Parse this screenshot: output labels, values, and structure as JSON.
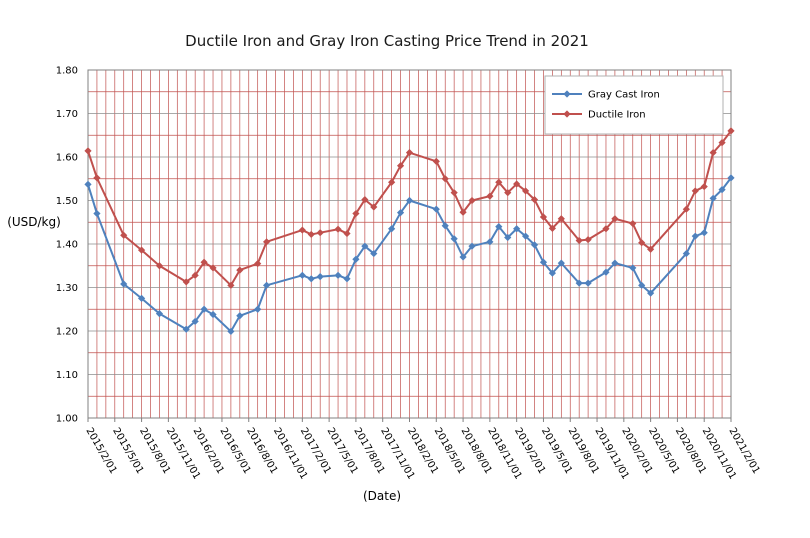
{
  "chart_data": {
    "type": "line",
    "title": "Ductile Iron and Gray Iron Casting Price Trend in 2021",
    "xlabel": "(Date)",
    "ylabel": "(USD/kg)",
    "ylim": [
      1.0,
      1.8
    ],
    "yticks": [
      "1.00",
      "1.10",
      "1.20",
      "1.30",
      "1.40",
      "1.50",
      "1.60",
      "1.70",
      "1.80"
    ],
    "xticks": [
      "2015/2/01",
      "2015/5/01",
      "2015/8/01",
      "2015/11/01",
      "2016/2/01",
      "2016/5/01",
      "2016/8/01",
      "2016/11/01",
      "2017/2/01",
      "2017/5/01",
      "2017/8/01",
      "2017/11/01",
      "2018/2/01",
      "2018/5/01",
      "2018/8/01",
      "2018/11/01",
      "2019/2/01",
      "2019/5/01",
      "2019/8/01",
      "2019/11/01",
      "2020/2/01",
      "2020/5/01",
      "2020/8/01",
      "2020/11/01",
      "2021/2/01"
    ],
    "grid": true,
    "legend_position": "top-right",
    "series": [
      {
        "name": "Gray Cast Iron",
        "color": "#4f81bd",
        "points": [
          [
            "2015-02-01",
            1.537
          ],
          [
            "2015-03-01",
            1.47
          ],
          [
            "2015-06-01",
            1.308
          ],
          [
            "2015-08-01",
            1.275
          ],
          [
            "2015-10-01",
            1.24
          ],
          [
            "2016-01-01",
            1.204
          ],
          [
            "2016-02-01",
            1.222
          ],
          [
            "2016-03-01",
            1.25
          ],
          [
            "2016-04-01",
            1.238
          ],
          [
            "2016-06-01",
            1.199
          ],
          [
            "2016-07-01",
            1.235
          ],
          [
            "2016-09-01",
            1.25
          ],
          [
            "2016-10-01",
            1.305
          ],
          [
            "2017-02-01",
            1.328
          ],
          [
            "2017-03-01",
            1.32
          ],
          [
            "2017-04-01",
            1.325
          ],
          [
            "2017-06-01",
            1.328
          ],
          [
            "2017-07-01",
            1.32
          ],
          [
            "2017-08-01",
            1.365
          ],
          [
            "2017-09-01",
            1.395
          ],
          [
            "2017-10-01",
            1.378
          ],
          [
            "2017-12-01",
            1.435
          ],
          [
            "2018-01-01",
            1.472
          ],
          [
            "2018-02-01",
            1.5
          ],
          [
            "2018-05-01",
            1.48
          ],
          [
            "2018-06-01",
            1.442
          ],
          [
            "2018-07-01",
            1.412
          ],
          [
            "2018-08-01",
            1.37
          ],
          [
            "2018-09-01",
            1.395
          ],
          [
            "2018-11-01",
            1.405
          ],
          [
            "2018-12-01",
            1.44
          ],
          [
            "2019-01-01",
            1.415
          ],
          [
            "2019-02-01",
            1.435
          ],
          [
            "2019-03-01",
            1.418
          ],
          [
            "2019-04-01",
            1.398
          ],
          [
            "2019-05-01",
            1.358
          ],
          [
            "2019-06-01",
            1.333
          ],
          [
            "2019-07-01",
            1.356
          ],
          [
            "2019-09-01",
            1.31
          ],
          [
            "2019-10-01",
            1.31
          ],
          [
            "2019-12-01",
            1.335
          ],
          [
            "2020-01-01",
            1.356
          ],
          [
            "2020-03-01",
            1.345
          ],
          [
            "2020-04-01",
            1.305
          ],
          [
            "2020-05-01",
            1.287
          ],
          [
            "2020-09-01",
            1.378
          ],
          [
            "2020-10-01",
            1.418
          ],
          [
            "2020-11-01",
            1.426
          ],
          [
            "2020-12-01",
            1.505
          ],
          [
            "2021-01-01",
            1.525
          ],
          [
            "2021-02-01",
            1.552
          ]
        ]
      },
      {
        "name": "Ductile Iron",
        "color": "#c0504d",
        "points": [
          [
            "2015-02-01",
            1.614
          ],
          [
            "2015-03-01",
            1.552
          ],
          [
            "2015-06-01",
            1.42
          ],
          [
            "2015-08-01",
            1.386
          ],
          [
            "2015-10-01",
            1.35
          ],
          [
            "2016-01-01",
            1.313
          ],
          [
            "2016-02-01",
            1.328
          ],
          [
            "2016-03-01",
            1.358
          ],
          [
            "2016-04-01",
            1.345
          ],
          [
            "2016-06-01",
            1.305
          ],
          [
            "2016-07-01",
            1.34
          ],
          [
            "2016-09-01",
            1.355
          ],
          [
            "2016-10-01",
            1.405
          ],
          [
            "2017-02-01",
            1.432
          ],
          [
            "2017-03-01",
            1.422
          ],
          [
            "2017-04-01",
            1.426
          ],
          [
            "2017-06-01",
            1.434
          ],
          [
            "2017-07-01",
            1.424
          ],
          [
            "2017-08-01",
            1.47
          ],
          [
            "2017-09-01",
            1.502
          ],
          [
            "2017-10-01",
            1.485
          ],
          [
            "2017-12-01",
            1.542
          ],
          [
            "2018-01-01",
            1.58
          ],
          [
            "2018-02-01",
            1.61
          ],
          [
            "2018-05-01",
            1.59
          ],
          [
            "2018-06-01",
            1.55
          ],
          [
            "2018-07-01",
            1.518
          ],
          [
            "2018-08-01",
            1.473
          ],
          [
            "2018-09-01",
            1.5
          ],
          [
            "2018-11-01",
            1.51
          ],
          [
            "2018-12-01",
            1.542
          ],
          [
            "2019-01-01",
            1.518
          ],
          [
            "2019-02-01",
            1.538
          ],
          [
            "2019-03-01",
            1.522
          ],
          [
            "2019-04-01",
            1.502
          ],
          [
            "2019-05-01",
            1.462
          ],
          [
            "2019-06-01",
            1.436
          ],
          [
            "2019-07-01",
            1.458
          ],
          [
            "2019-09-01",
            1.408
          ],
          [
            "2019-10-01",
            1.41
          ],
          [
            "2019-12-01",
            1.435
          ],
          [
            "2020-01-01",
            1.458
          ],
          [
            "2020-03-01",
            1.447
          ],
          [
            "2020-04-01",
            1.403
          ],
          [
            "2020-05-01",
            1.388
          ],
          [
            "2020-09-01",
            1.48
          ],
          [
            "2020-10-01",
            1.522
          ],
          [
            "2020-11-01",
            1.532
          ],
          [
            "2020-12-01",
            1.61
          ],
          [
            "2021-01-01",
            1.633
          ],
          [
            "2021-02-01",
            1.66
          ]
        ]
      }
    ]
  }
}
